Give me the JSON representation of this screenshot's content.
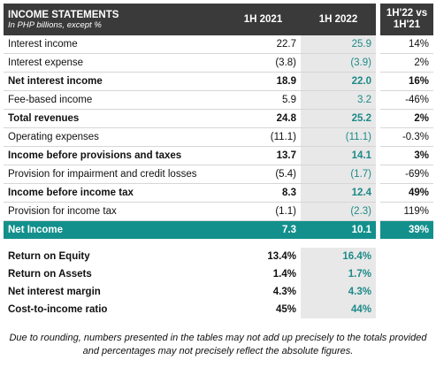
{
  "header": {
    "title": "INCOME STATEMENTS",
    "subtitle": "In PHP billions, except %",
    "columns": [
      "1H 2021",
      "1H 2022",
      "1H'22 vs 1H'21"
    ]
  },
  "table": {
    "rows": [
      [
        "Interest income",
        "22.7",
        "25.9",
        "14%"
      ],
      [
        "Interest expense",
        "(3.8)",
        "(3.9)",
        "2%"
      ],
      [
        "Net interest income",
        "18.9",
        "22.0",
        "16%"
      ],
      [
        "Fee-based income",
        "5.9",
        "3.2",
        "-46%"
      ],
      [
        "Total revenues",
        "24.8",
        "25.2",
        "2%"
      ],
      [
        "Operating expenses",
        "(11.1)",
        "(11.1)",
        "-0.3%"
      ],
      [
        "Income before provisions and taxes",
        "13.7",
        "14.1",
        "3%"
      ],
      [
        "Provision for impairment and credit losses",
        "(5.4)",
        "(1.7)",
        "-69%"
      ],
      [
        "Income before income tax",
        "8.3",
        "12.4",
        "49%"
      ],
      [
        "Provision for income tax",
        "(1.1)",
        "(2.3)",
        "119%"
      ],
      [
        "Net Income",
        "7.3",
        "10.1",
        "39%"
      ]
    ]
  },
  "ratios": {
    "rows": [
      [
        "Return on Equity",
        "13.4%",
        "16.4%"
      ],
      [
        "Return on Assets",
        "1.4%",
        "1.7%"
      ],
      [
        "Net interest margin",
        "4.3%",
        "4.3%"
      ],
      [
        "Cost-to-income ratio",
        "45%",
        "44%"
      ]
    ]
  },
  "footnote": "Due to rounding, numbers presented in the tables may not add up precisely to the totals provided and percentages may not precisely reflect the absolute figures."
}
